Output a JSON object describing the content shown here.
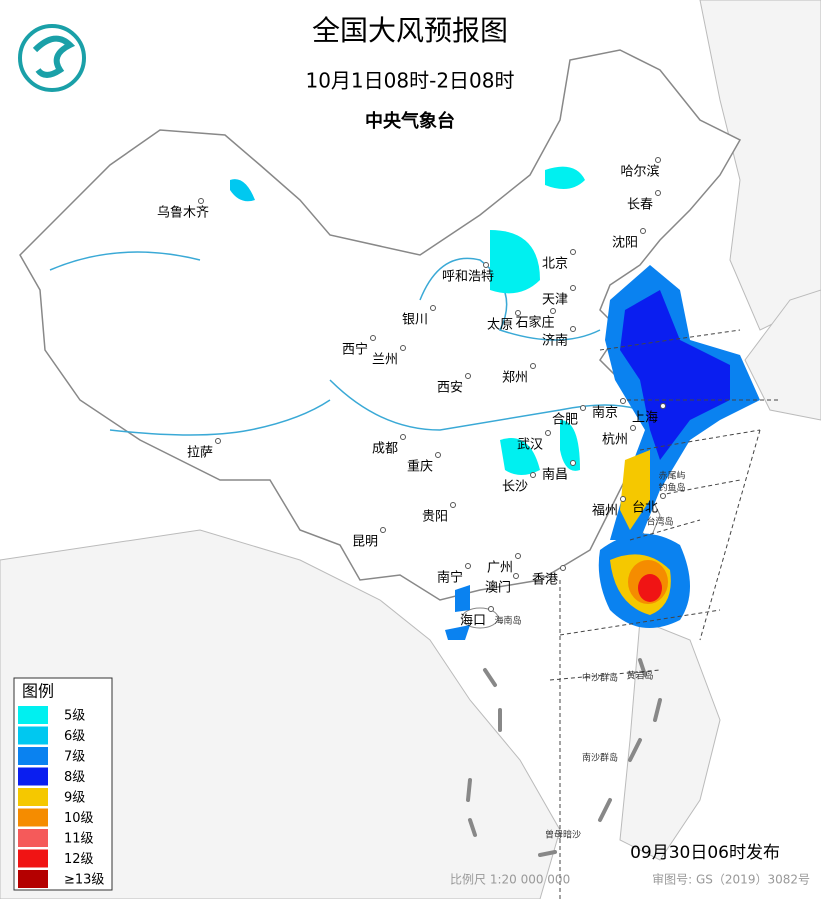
{
  "header": {
    "title": "全国大风预报图",
    "period": "10月1日08时-2日08时",
    "issuer": "中央气象台"
  },
  "legend": {
    "title": "图例",
    "items": [
      {
        "label": "5级",
        "color": "#00f0f0"
      },
      {
        "label": "6级",
        "color": "#00c8f0"
      },
      {
        "label": "7级",
        "color": "#0a82f0"
      },
      {
        "label": "8级",
        "color": "#0a1ef0"
      },
      {
        "label": "9级",
        "color": "#f5c800"
      },
      {
        "label": "10级",
        "color": "#f58c00"
      },
      {
        "label": "11级",
        "color": "#f55a5a"
      },
      {
        "label": "12级",
        "color": "#f01414"
      },
      {
        "label": "≥13级",
        "color": "#b40000"
      }
    ]
  },
  "cities": [
    "乌鲁木齐",
    "哈尔滨",
    "长春",
    "沈阳",
    "北京",
    "呼和浩特",
    "天津",
    "银川",
    "太原",
    "石家庄",
    "济南",
    "西宁",
    "兰州",
    "郑州",
    "西安",
    "南京",
    "合肥",
    "上海",
    "杭州",
    "拉萨",
    "成都",
    "武汉",
    "重庆",
    "南昌",
    "长沙",
    "福州",
    "台北",
    "贵阳",
    "昆明",
    "南宁",
    "广州",
    "澳门",
    "香港",
    "海口"
  ],
  "islands": [
    "台湾岛",
    "海南岛",
    "钓鱼岛",
    "赤尾屿",
    "中沙群岛",
    "黄岩岛",
    "南沙群岛",
    "曾母暗沙"
  ],
  "footer": {
    "issued": "09月30日06时发布",
    "scale": "比例尺 1:20 000 000",
    "map_number": "审图号: GS（2019）3082号"
  }
}
